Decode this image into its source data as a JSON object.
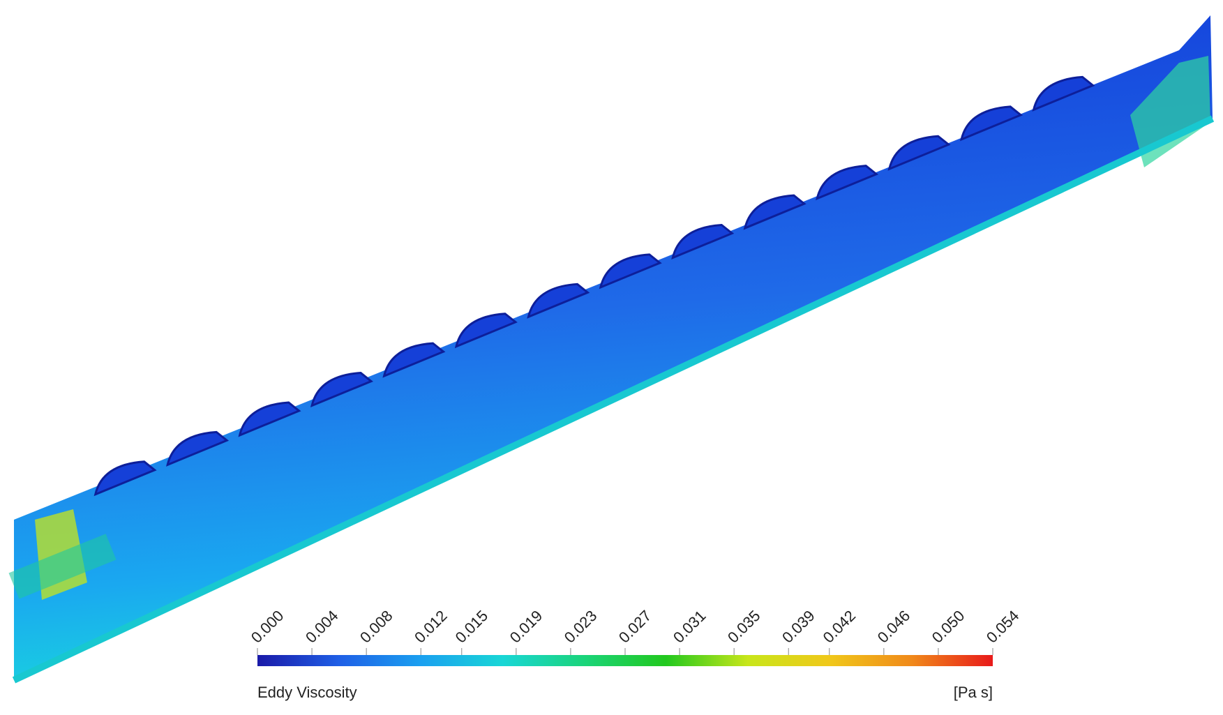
{
  "colorbar": {
    "title": "Eddy Viscosity",
    "unit": "[Pa s]",
    "range": [
      0,
      0.054
    ],
    "colors": [
      "#1a1aa8",
      "#1f5fe6",
      "#1aa0f0",
      "#19d6d6",
      "#1ad47a",
      "#22c81e",
      "#c8e61a",
      "#f0c81a",
      "#f08a1a",
      "#e81a1a"
    ],
    "ticks": [
      {
        "value": 0,
        "label": "0.000"
      },
      {
        "value": 0.004,
        "label": "0.004"
      },
      {
        "value": 0.008,
        "label": "0.008"
      },
      {
        "value": 0.012,
        "label": "0.012"
      },
      {
        "value": 0.015,
        "label": "0.015"
      },
      {
        "value": 0.019,
        "label": "0.019"
      },
      {
        "value": 0.023,
        "label": "0.023"
      },
      {
        "value": 0.027,
        "label": "0.027"
      },
      {
        "value": 0.031,
        "label": "0.031"
      },
      {
        "value": 0.035,
        "label": "0.035"
      },
      {
        "value": 0.039,
        "label": "0.039"
      },
      {
        "value": 0.042,
        "label": "0.042"
      },
      {
        "value": 0.046,
        "label": "0.046"
      },
      {
        "value": 0.05,
        "label": "0.050"
      },
      {
        "value": 0.054,
        "label": "0.054"
      }
    ]
  }
}
